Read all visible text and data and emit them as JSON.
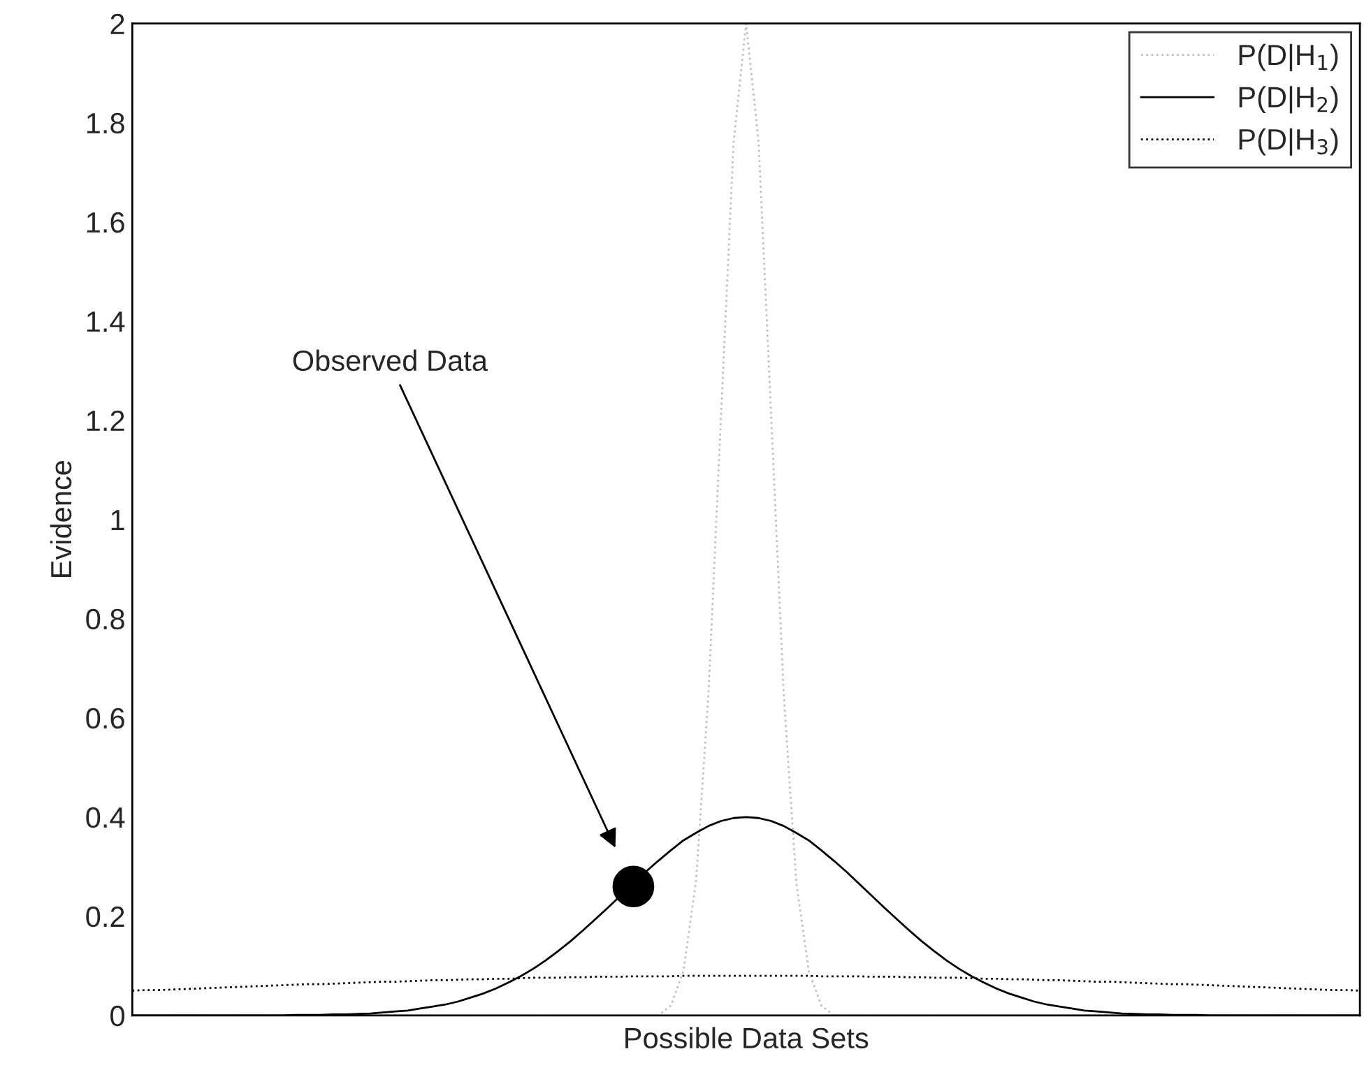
{
  "chart_data": {
    "type": "line",
    "xlabel": "Possible Data Sets",
    "ylabel": "Evidence",
    "categories": [
      null,
      null,
      null,
      null,
      null,
      null,
      null,
      null,
      null,
      null,
      null,
      null,
      null,
      null,
      null,
      null,
      null,
      null,
      null,
      null,
      null,
      null,
      null,
      null,
      null,
      null,
      null,
      null,
      null,
      null,
      null,
      null,
      null,
      null,
      null,
      null,
      null,
      null,
      null,
      null,
      null,
      null,
      null,
      null,
      null,
      null,
      null,
      null,
      null,
      null,
      null,
      null,
      null,
      null,
      null,
      null,
      null,
      null,
      null,
      null,
      null,
      null,
      null,
      null,
      null,
      null,
      null,
      null,
      null,
      null,
      null,
      null,
      null,
      null,
      null,
      null,
      null,
      null,
      null,
      null,
      null,
      null,
      null,
      null,
      null,
      null,
      null,
      null,
      null,
      null,
      null,
      null,
      null,
      null,
      null,
      null,
      null,
      null,
      null
    ],
    "ylim": [
      0,
      2
    ],
    "yticks": [
      0,
      0.2,
      0.4,
      0.6,
      0.8,
      1,
      1.2,
      1.4,
      1.6,
      1.8,
      2
    ],
    "tick_labels": "y",
    "grid": false,
    "legend": "top right",
    "annotations": [
      "Observed Data"
    ],
    "series": [
      {
        "name": "P(D|H$_{1}$)",
        "color": "#c0c0c0",
        "line_style": "dotted",
        "values": [
          0,
          0,
          0,
          0,
          0,
          0,
          0,
          0,
          0,
          0,
          0,
          0,
          0,
          0,
          0,
          0,
          0,
          0,
          0,
          0,
          0,
          0,
          0,
          0,
          0,
          0,
          0,
          0,
          0,
          0,
          0,
          0,
          0,
          0,
          0,
          0,
          0,
          0,
          0,
          0,
          0,
          0,
          0,
          0.02,
          0.09,
          0.27,
          0.65,
          1.21,
          1.76,
          2.0,
          1.76,
          1.21,
          0.65,
          0.27,
          0.09,
          0.02,
          0,
          0,
          0,
          0,
          0,
          0,
          0,
          0,
          0,
          0,
          0,
          0,
          0,
          0,
          0,
          0,
          0,
          0,
          0,
          0,
          0,
          0,
          0,
          0,
          0,
          0,
          0,
          0,
          0,
          0,
          0,
          0,
          0,
          0,
          0,
          0,
          0,
          0,
          0,
          0,
          0,
          0,
          0
        ]
      },
      {
        "name": "P(D|H$_{2}$)",
        "color": "#000000",
        "line_style": "solid",
        "values": [
          0,
          0,
          0,
          0,
          0,
          0,
          0,
          0,
          0,
          0,
          0,
          0,
          0,
          0.001,
          0.001,
          0.001,
          0.002,
          0.002,
          0.003,
          0.004,
          0.006,
          0.008,
          0.01,
          0.014,
          0.018,
          0.022,
          0.028,
          0.036,
          0.044,
          0.054,
          0.066,
          0.079,
          0.094,
          0.111,
          0.13,
          0.15,
          0.172,
          0.195,
          0.218,
          0.242,
          0.266,
          0.29,
          0.312,
          0.333,
          0.353,
          0.368,
          0.382,
          0.392,
          0.398,
          0.4,
          0.398,
          0.392,
          0.382,
          0.368,
          0.353,
          0.333,
          0.312,
          0.29,
          0.266,
          0.242,
          0.218,
          0.195,
          0.172,
          0.15,
          0.13,
          0.111,
          0.094,
          0.079,
          0.066,
          0.054,
          0.044,
          0.036,
          0.028,
          0.022,
          0.018,
          0.014,
          0.01,
          0.008,
          0.006,
          0.004,
          0.003,
          0.002,
          0.002,
          0.001,
          0.001,
          0.001,
          0,
          0,
          0,
          0,
          0,
          0,
          0,
          0,
          0,
          0,
          0,
          0,
          0
        ]
      },
      {
        "name": "P(D|H$_{3}$)",
        "color": "#000000",
        "line_style": "dotted",
        "values": [
          0.05,
          0.051,
          0.051,
          0.052,
          0.053,
          0.054,
          0.055,
          0.056,
          0.057,
          0.058,
          0.059,
          0.06,
          0.061,
          0.062,
          0.063,
          0.063,
          0.064,
          0.065,
          0.066,
          0.067,
          0.068,
          0.068,
          0.069,
          0.07,
          0.071,
          0.071,
          0.072,
          0.073,
          0.073,
          0.074,
          0.074,
          0.075,
          0.076,
          0.076,
          0.076,
          0.077,
          0.077,
          0.078,
          0.078,
          0.078,
          0.079,
          0.079,
          0.079,
          0.079,
          0.08,
          0.08,
          0.08,
          0.08,
          0.08,
          0.08,
          0.08,
          0.08,
          0.08,
          0.08,
          0.08,
          0.079,
          0.079,
          0.079,
          0.079,
          0.078,
          0.078,
          0.078,
          0.077,
          0.077,
          0.076,
          0.076,
          0.076,
          0.075,
          0.074,
          0.074,
          0.073,
          0.073,
          0.072,
          0.071,
          0.071,
          0.07,
          0.069,
          0.068,
          0.068,
          0.067,
          0.066,
          0.065,
          0.064,
          0.063,
          0.063,
          0.062,
          0.061,
          0.06,
          0.059,
          0.058,
          0.057,
          0.056,
          0.055,
          0.054,
          0.053,
          0.052,
          0.051,
          0.051,
          0.05
        ]
      },
      {
        "type": "scatter",
        "color": "#000000",
        "marker": "circle",
        "values": [
          null,
          null,
          null,
          null,
          null,
          null,
          null,
          null,
          null,
          null,
          null,
          null,
          null,
          null,
          null,
          null,
          null,
          null,
          null,
          null,
          null,
          null,
          null,
          null,
          null,
          null,
          null,
          null,
          null,
          null,
          null,
          null,
          null,
          null,
          null,
          null,
          null,
          null,
          null,
          null,
          0.26,
          null,
          null,
          null,
          null,
          null,
          null,
          null,
          null,
          null,
          null,
          null,
          null,
          null,
          null,
          null,
          null,
          null,
          null,
          null,
          null,
          null,
          null,
          null,
          null,
          null,
          null,
          null,
          null,
          null,
          null,
          null,
          null,
          null,
          null,
          null,
          null,
          null,
          null,
          null,
          null,
          null,
          null,
          null,
          null,
          null,
          null,
          null,
          null,
          null,
          null,
          null,
          null,
          null,
          null,
          null,
          null,
          null,
          null
        ]
      }
    ]
  }
}
